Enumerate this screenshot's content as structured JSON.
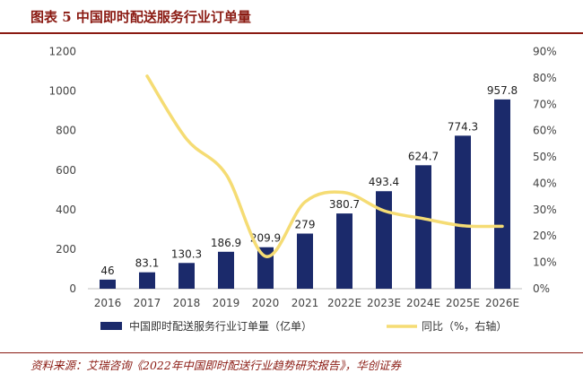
{
  "figure": {
    "title": "图表 5 中国即时配送服务行业订单量",
    "source": "资料来源：艾瑞咨询《2022年中国即时配送行业趋势研究报告》，华创证券"
  },
  "chart_data": {
    "type": "bar",
    "categories": [
      "2016",
      "2017",
      "2018",
      "2019",
      "2020",
      "2021",
      "2022E",
      "2023E",
      "2024E",
      "2025E",
      "2026E"
    ],
    "series": [
      {
        "name": "中国即时配送服务行业订单量（亿单）",
        "type": "bar",
        "axis": "left",
        "color": "#1b2a6b",
        "values": [
          46,
          83.1,
          130.3,
          186.9,
          209.9,
          279,
          380.7,
          493.4,
          624.7,
          774.3,
          957.8
        ],
        "labels": [
          "46",
          "83.1",
          "130.3",
          "186.9",
          "209.9",
          "279",
          "380.7",
          "493.4",
          "624.7",
          "774.3",
          "957.8"
        ]
      },
      {
        "name": "同比（%，右轴）",
        "type": "line",
        "axis": "right",
        "color": "#f5dc74",
        "values": [
          null,
          80.7,
          56.8,
          43.4,
          12.3,
          32.9,
          36.5,
          29.6,
          26.6,
          23.9,
          23.7
        ]
      }
    ],
    "yaxis_left": {
      "min": 0,
      "max": 1200,
      "ticks": [
        "0",
        "200",
        "400",
        "600",
        "800",
        "1000",
        "1200"
      ]
    },
    "yaxis_right": {
      "min": 0,
      "max": 90,
      "ticks": [
        "0%",
        "10%",
        "20%",
        "30%",
        "40%",
        "50%",
        "60%",
        "70%",
        "80%",
        "90%"
      ]
    },
    "grid": false,
    "legend_position": "bottom"
  }
}
